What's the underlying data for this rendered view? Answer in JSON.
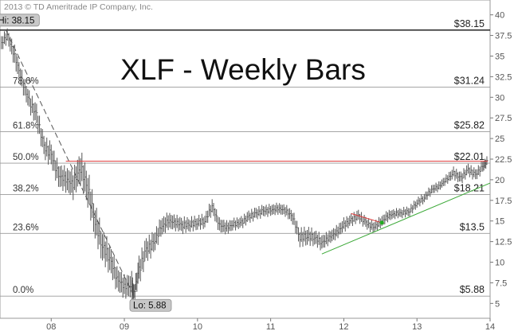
{
  "copyright": "2013 © TD Ameritrade IP Company, Inc.",
  "chart_data": {
    "type": "bar",
    "title": "XLF - Weekly Bars",
    "xlabel": "",
    "ylabel": "",
    "x_ticks": [
      {
        "label": "08",
        "x": 2008.0
      },
      {
        "label": "09",
        "x": 2009.0
      },
      {
        "label": "10",
        "x": 2010.0
      },
      {
        "label": "11",
        "x": 2011.0
      },
      {
        "label": "12",
        "x": 2012.0
      },
      {
        "label": "13",
        "x": 2013.0
      },
      {
        "label": "14",
        "x": 2014.0
      }
    ],
    "xlim": [
      2007.3,
      2014.0
    ],
    "ylim": [
      3.2,
      41.8
    ],
    "y_ticks": [
      5,
      7.5,
      10,
      12.5,
      15,
      17.5,
      20,
      22.5,
      25,
      27.5,
      30,
      32.5,
      35,
      37.5,
      40
    ],
    "y_tick_labels": [
      "5",
      "7.5",
      "10",
      "12.5",
      "15",
      "17.5",
      "20",
      "22.5",
      "25",
      "27.5",
      "30",
      "32.5",
      "35",
      "37.5",
      "40"
    ],
    "grid": false,
    "fib_levels": [
      {
        "pct": "",
        "value": 38.15,
        "label": "$38.15"
      },
      {
        "pct": "78.6%",
        "value": 31.24,
        "label": "$31.24"
      },
      {
        "pct": "61.8%",
        "value": 25.82,
        "label": "$25.82"
      },
      {
        "pct": "50.0%",
        "value": 22.01,
        "label": "$22.01"
      },
      {
        "pct": "38.2%",
        "value": 18.21,
        "label": "$18.21"
      },
      {
        "pct": "23.6%",
        "value": 13.5,
        "label": "$13.5"
      },
      {
        "pct": "0.0%",
        "value": 5.88,
        "label": "$5.88"
      }
    ],
    "annotations": {
      "high": {
        "text": "Hi: 38.15",
        "x": 2007.38,
        "y": 38.15
      },
      "low": {
        "text": "Lo: 5.88",
        "x": 2009.13,
        "y": 5.88
      }
    },
    "price_series": {
      "name": "XLF",
      "x": [
        2007.3,
        2007.4,
        2007.5,
        2007.6,
        2007.7,
        2007.8,
        2007.9,
        2008.0,
        2008.1,
        2008.2,
        2008.3,
        2008.4,
        2008.5,
        2008.6,
        2008.7,
        2008.8,
        2008.9,
        2009.0,
        2009.1,
        2009.13,
        2009.2,
        2009.3,
        2009.4,
        2009.5,
        2009.6,
        2009.7,
        2009.8,
        2009.9,
        2010.0,
        2010.1,
        2010.2,
        2010.3,
        2010.4,
        2010.5,
        2010.6,
        2010.7,
        2010.8,
        2010.9,
        2011.0,
        2011.1,
        2011.2,
        2011.3,
        2011.4,
        2011.5,
        2011.6,
        2011.7,
        2011.8,
        2011.9,
        2012.0,
        2012.1,
        2012.2,
        2012.3,
        2012.4,
        2012.5,
        2012.6,
        2012.7,
        2012.8,
        2012.9,
        2013.0,
        2013.1,
        2013.2,
        2013.3,
        2013.4,
        2013.5,
        2013.6,
        2013.7,
        2013.8,
        2013.9,
        2013.97
      ],
      "close": [
        36.3,
        37.5,
        35.0,
        32.0,
        29.5,
        27.8,
        24.0,
        23.0,
        20.5,
        20.0,
        19.5,
        21.5,
        19.0,
        15.0,
        12.0,
        10.5,
        8.0,
        7.0,
        7.2,
        6.2,
        9.0,
        11.5,
        12.3,
        14.2,
        15.0,
        14.8,
        14.5,
        14.6,
        14.8,
        15.0,
        16.8,
        14.5,
        14.2,
        14.6,
        14.8,
        15.5,
        15.9,
        16.2,
        16.3,
        16.5,
        16.3,
        15.5,
        13.0,
        13.2,
        13.0,
        12.4,
        13.0,
        13.6,
        14.5,
        15.1,
        15.6,
        14.8,
        14.2,
        14.8,
        15.6,
        15.9,
        16.0,
        16.2,
        17.2,
        17.8,
        18.8,
        19.2,
        20.0,
        20.8,
        20.2,
        21.2,
        20.6,
        21.6,
        22.3
      ],
      "range": [
        1.6,
        1.5,
        2.2,
        2.0,
        2.0,
        2.2,
        2.2,
        2.4,
        2.5,
        2.6,
        3.0,
        3.4,
        3.6,
        3.4,
        3.2,
        3.0,
        2.6,
        2.4,
        2.6,
        1.6,
        2.8,
        2.4,
        2.2,
        2.0,
        1.8,
        1.6,
        1.6,
        1.4,
        1.4,
        1.4,
        1.6,
        1.6,
        1.4,
        1.2,
        1.2,
        1.2,
        1.2,
        1.2,
        1.2,
        1.2,
        1.2,
        1.4,
        1.8,
        1.8,
        1.6,
        1.6,
        1.4,
        1.4,
        1.4,
        1.2,
        1.2,
        1.2,
        1.2,
        1.2,
        1.2,
        1.0,
        1.0,
        1.0,
        1.0,
        1.0,
        1.0,
        1.0,
        1.0,
        1.2,
        1.2,
        1.2,
        1.2,
        1.2,
        1.0
      ]
    },
    "trendlines": [
      {
        "name": "",
        "color": "#555555",
        "style": "dashed",
        "points": [
          [
            2007.38,
            38.15
          ],
          [
            2009.13,
            5.88
          ]
        ]
      },
      {
        "name": "",
        "color": "#e03a3a",
        "style": "solid",
        "points": [
          [
            2008.2,
            22.25
          ],
          [
            2013.97,
            22.25
          ]
        ]
      },
      {
        "name": "",
        "color": "#e03a3a",
        "style": "solid",
        "points": [
          [
            2012.1,
            15.9
          ],
          [
            2012.55,
            14.7
          ]
        ]
      },
      {
        "name": "",
        "color": "#3aa836",
        "style": "solid",
        "points": [
          [
            2011.7,
            11.0
          ],
          [
            2014.0,
            19.6
          ]
        ]
      }
    ],
    "marker": {
      "x": 2012.52,
      "y": 14.8,
      "color": "#22aa22"
    },
    "colors": {
      "bars": "#555555",
      "levels": "#333333",
      "red": "#e03a3a",
      "green": "#3aa836"
    }
  }
}
